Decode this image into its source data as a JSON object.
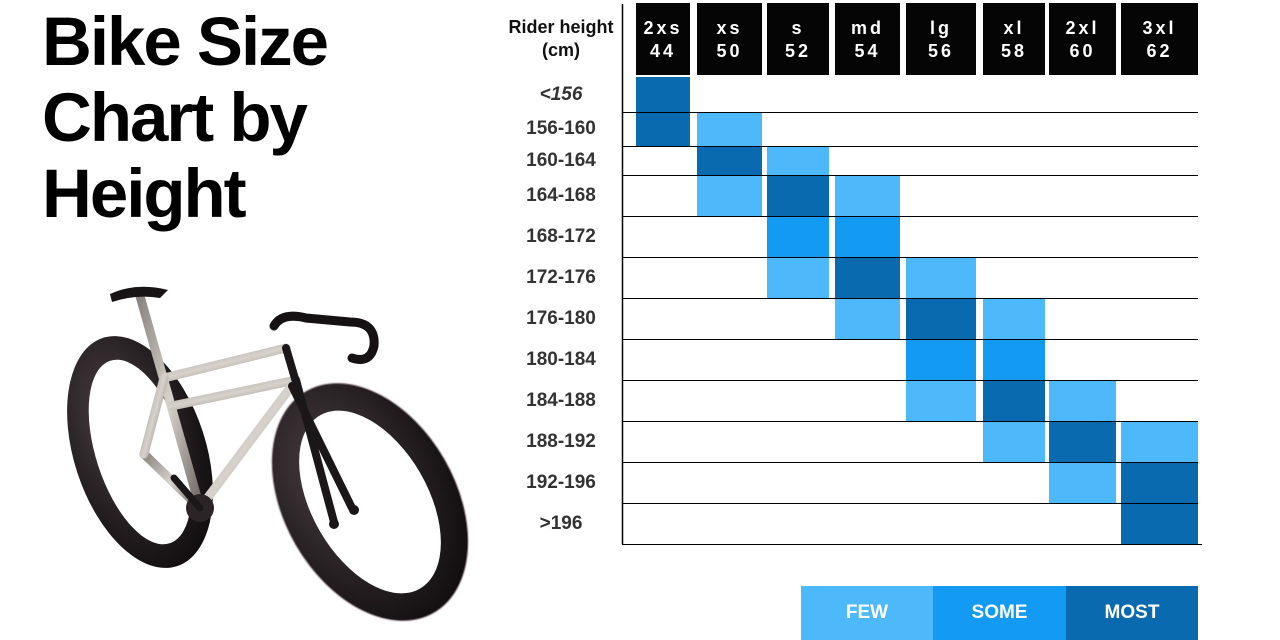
{
  "title": {
    "line1": "Bike Size",
    "line2": "Chart by",
    "line3": "Height"
  },
  "colors": {
    "few": "#4DB8FA",
    "some": "#139AF3",
    "most": "#0A6AB0",
    "header_bg": "#050505",
    "row_line": "#000000"
  },
  "chart_data": {
    "type": "heatmap",
    "title": "Bike Size Chart by Height",
    "ylabel_line1": "Rider height",
    "ylabel_line2": "(cm)",
    "columns": [
      {
        "size": "2xs",
        "number": "44"
      },
      {
        "size": "xs",
        "number": "50"
      },
      {
        "size": "s",
        "number": "52"
      },
      {
        "size": "md",
        "number": "54"
      },
      {
        "size": "lg",
        "number": "56"
      },
      {
        "size": "xl",
        "number": "58"
      },
      {
        "size": "2xl",
        "number": "60"
      },
      {
        "size": "3xl",
        "number": "62"
      }
    ],
    "rows": [
      "<156",
      "156-160",
      "160-164",
      "164-168",
      "168-172",
      "172-176",
      "176-180",
      "180-184",
      "184-188",
      "188-192",
      "192-196",
      ">196"
    ],
    "levels": [
      "",
      "few",
      "some",
      "most"
    ],
    "matrix": [
      [
        3,
        0,
        0,
        0,
        0,
        0,
        0,
        0
      ],
      [
        3,
        1,
        0,
        0,
        0,
        0,
        0,
        0
      ],
      [
        0,
        3,
        1,
        0,
        0,
        0,
        0,
        0
      ],
      [
        0,
        1,
        3,
        1,
        0,
        0,
        0,
        0
      ],
      [
        0,
        0,
        2,
        2,
        0,
        0,
        0,
        0
      ],
      [
        0,
        0,
        1,
        3,
        1,
        0,
        0,
        0
      ],
      [
        0,
        0,
        0,
        1,
        3,
        1,
        0,
        0
      ],
      [
        0,
        0,
        0,
        0,
        2,
        2,
        0,
        0
      ],
      [
        0,
        0,
        0,
        0,
        1,
        3,
        1,
        0
      ],
      [
        0,
        0,
        0,
        0,
        0,
        1,
        3,
        1
      ],
      [
        0,
        0,
        0,
        0,
        0,
        0,
        1,
        3
      ],
      [
        0,
        0,
        0,
        0,
        0,
        0,
        0,
        3
      ]
    ],
    "legend": [
      {
        "label": "FEW",
        "level": "few"
      },
      {
        "label": "SOME",
        "level": "some"
      },
      {
        "label": "MOST",
        "level": "most"
      }
    ]
  }
}
